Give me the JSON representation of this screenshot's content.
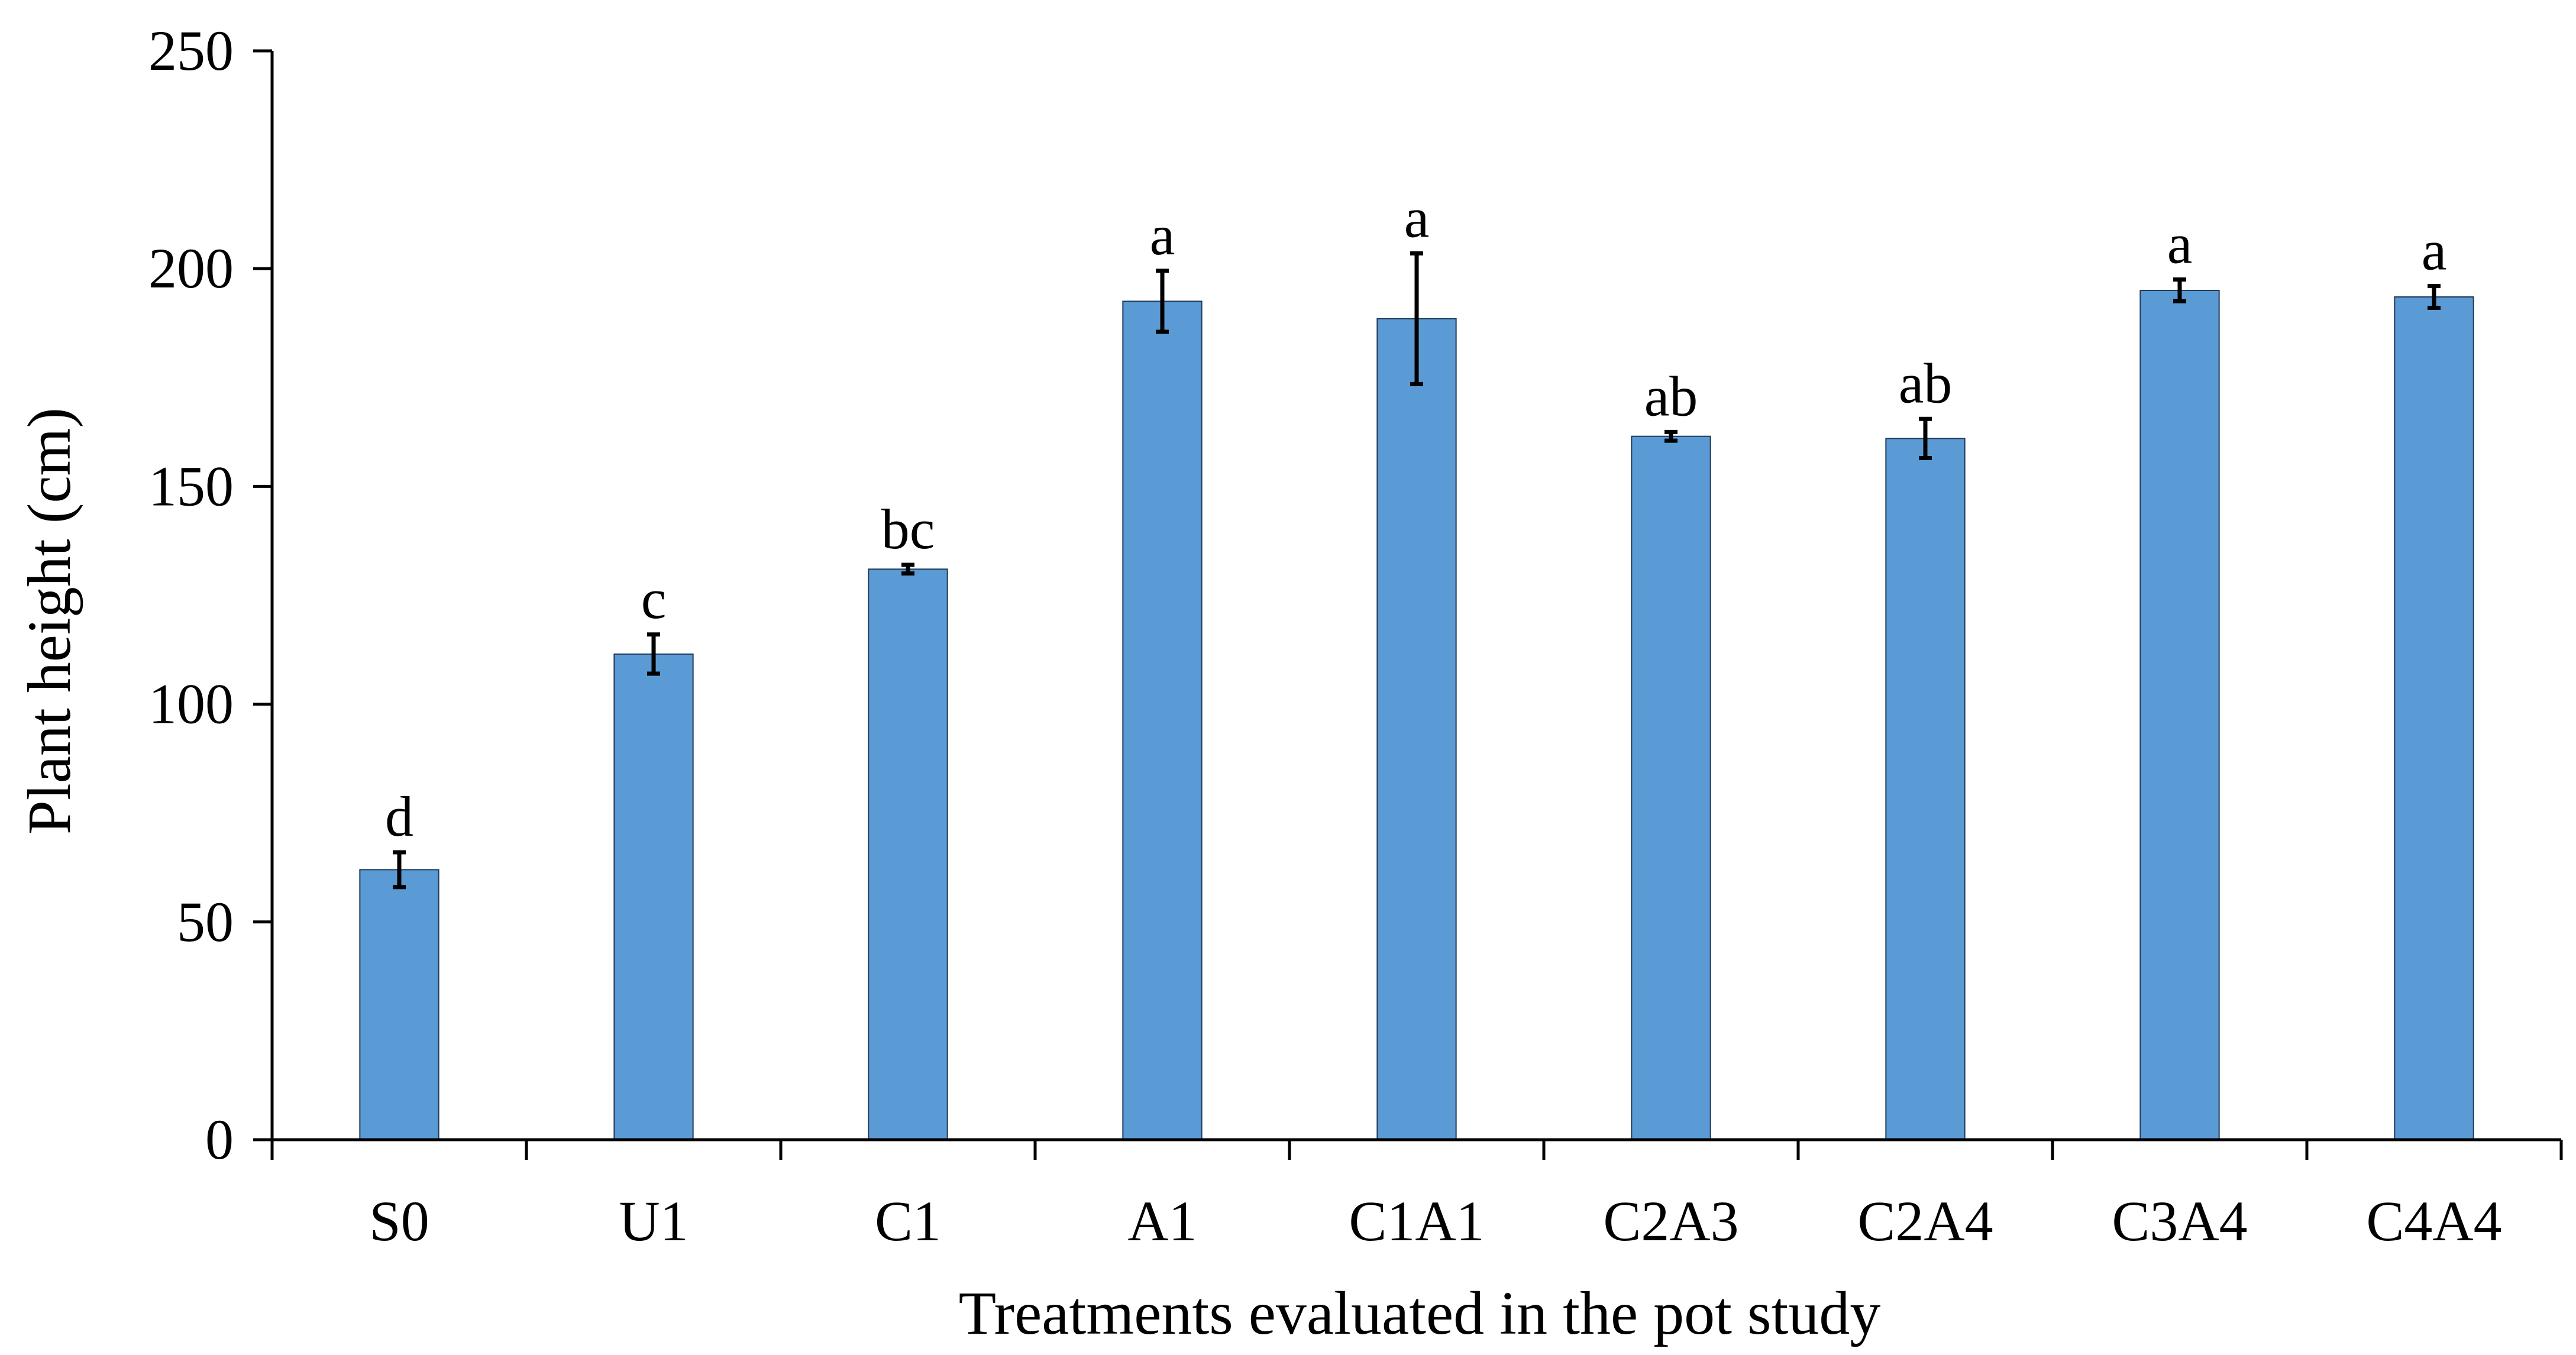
{
  "chart_data": {
    "type": "bar",
    "title": "",
    "xlabel": "Treatments evaluated in the pot study",
    "ylabel": "Plant height (cm)",
    "ylim": [
      0,
      250
    ],
    "yticks": [
      0,
      50,
      100,
      150,
      200,
      250
    ],
    "grid": false,
    "legend": "none",
    "bar_color": "#5b9bd5",
    "categories": [
      "S0",
      "U1",
      "C1",
      "A1",
      "C1A1",
      "C2A3",
      "C2A4",
      "C3A4",
      "C4A4"
    ],
    "values": [
      62,
      111.5,
      131,
      192.5,
      188.5,
      161.5,
      161,
      195,
      193.5
    ],
    "errors": [
      4,
      4.5,
      1,
      7,
      15,
      1,
      4.5,
      2.5,
      2.5
    ],
    "significance_labels": [
      "d",
      "c",
      "bc",
      "a",
      "a",
      "ab",
      "ab",
      "a",
      "a"
    ]
  }
}
